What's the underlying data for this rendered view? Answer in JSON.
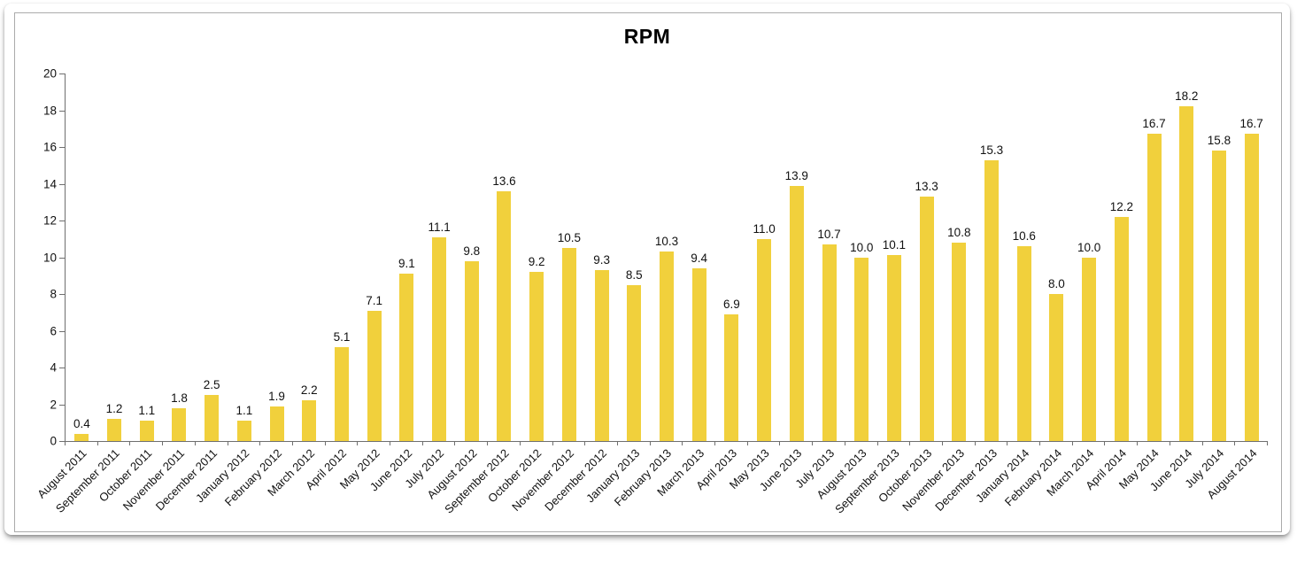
{
  "chart_data": {
    "type": "bar",
    "title": "RPM",
    "xlabel": "",
    "ylabel": "",
    "ylim": [
      0,
      20
    ],
    "ytick_step": 2,
    "yticks": [
      0,
      2,
      4,
      6,
      8,
      10,
      12,
      14,
      16,
      18,
      20
    ],
    "grid": "off",
    "legend": "none",
    "bar_color": "#F1D03C",
    "value_labels": "one decimal, above each bar",
    "categories": [
      "August 2011",
      "September 2011",
      "October 2011",
      "November 2011",
      "December 2011",
      "January 2012",
      "February 2012",
      "March 2012",
      "April 2012",
      "May 2012",
      "June 2012",
      "July 2012",
      "August 2012",
      "September 2012",
      "October 2012",
      "November 2012",
      "December 2012",
      "January 2013",
      "February 2013",
      "March 2013",
      "April 2013",
      "May 2013",
      "June 2013",
      "July 2013",
      "August 2013",
      "September 2013",
      "October 2013",
      "November 2013",
      "December 2013",
      "January 2014",
      "February 2014",
      "March 2014",
      "April 2014",
      "May 2014",
      "June 2014",
      "July 2014",
      "August 2014"
    ],
    "values": [
      0.4,
      1.2,
      1.1,
      1.8,
      2.5,
      1.1,
      1.9,
      2.2,
      5.1,
      7.1,
      9.1,
      11.1,
      9.8,
      13.6,
      9.2,
      10.5,
      9.3,
      8.5,
      10.3,
      9.4,
      6.9,
      11.0,
      13.9,
      10.7,
      10.0,
      10.1,
      13.3,
      10.8,
      15.3,
      10.6,
      8.0,
      10.0,
      12.2,
      16.7,
      18.2,
      15.8,
      16.7
    ]
  }
}
